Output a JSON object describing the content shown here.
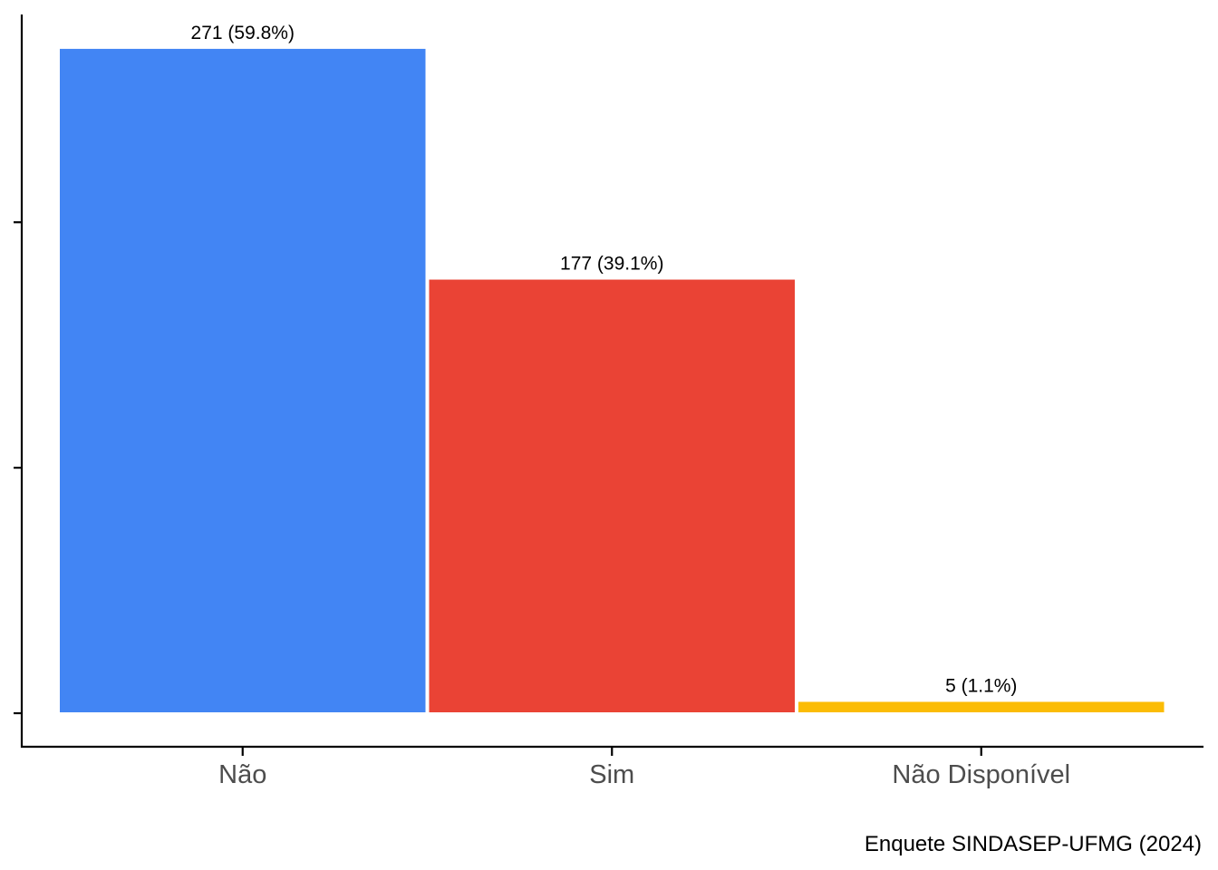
{
  "chart_data": {
    "type": "bar",
    "categories": [
      "Não",
      "Sim",
      "Não Disponível"
    ],
    "values": [
      271,
      177,
      5
    ],
    "labels": [
      "271 (59.8%)",
      "177 (39.1%)",
      "5 (1.1%)"
    ],
    "colors": [
      "#4285F4",
      "#EA4335",
      "#FBBC05"
    ],
    "ylim": [
      0,
      285
    ],
    "yticks": [
      0,
      100,
      200
    ],
    "y_tick_labels_shown": false,
    "grid": false,
    "legend": "none",
    "caption": "Enquete SINDASEP-UFMG (2024)"
  }
}
